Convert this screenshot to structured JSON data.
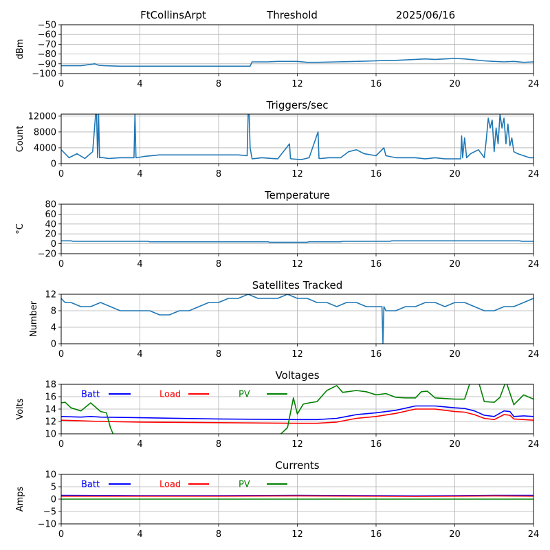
{
  "header": {
    "station": "FtCollinsArpt",
    "mode": "Threshold",
    "date": "2025/06/16"
  },
  "colors": {
    "line": "#1f77b4",
    "batt": "#0000ff",
    "load": "#ff0000",
    "pv": "#008000"
  },
  "chart_data": [
    {
      "type": "line",
      "title": "",
      "ylabel": "dBm",
      "ylim": [
        -100,
        -50
      ],
      "yticks": [
        -100,
        -90,
        -80,
        -70,
        -60,
        -50
      ],
      "ytick_labels": [
        "−100",
        "−90",
        "−80",
        "−70",
        "−60",
        "−50"
      ],
      "xlim": [
        0,
        24
      ],
      "xticks": [
        0,
        4,
        8,
        12,
        16,
        20,
        24
      ],
      "grid": true,
      "series": [
        {
          "name": "",
          "x": [
            0,
            1,
            1.7,
            1.9,
            2.2,
            3,
            4,
            6,
            8,
            9.6,
            9.7,
            10.5,
            11,
            12,
            12.5,
            13,
            14,
            15,
            16,
            16.5,
            17,
            18,
            18.5,
            19,
            19.5,
            20,
            20.5,
            21,
            21.5,
            22,
            22.5,
            23,
            23.5,
            24
          ],
          "y": [
            -92,
            -92,
            -90,
            -91.5,
            -92,
            -92.5,
            -92.5,
            -92.5,
            -92.5,
            -92.5,
            -88,
            -88,
            -87.5,
            -87.5,
            -88.5,
            -88.5,
            -88,
            -87.5,
            -87,
            -86.5,
            -86.5,
            -85.5,
            -85,
            -85.5,
            -85,
            -84.5,
            -85,
            -86,
            -87,
            -87.5,
            -88,
            -87.5,
            -88.5,
            -88
          ]
        }
      ]
    },
    {
      "type": "line",
      "title": "Triggers/sec",
      "ylabel": "Count",
      "ylim": [
        0,
        12500
      ],
      "yticks": [
        0,
        4000,
        8000,
        12000
      ],
      "ytick_labels": [
        "0",
        "4000",
        "8000",
        "12000"
      ],
      "xlim": [
        0,
        24
      ],
      "xticks": [
        0,
        4,
        8,
        12,
        16,
        20,
        24
      ],
      "grid": true,
      "series": [
        {
          "name": "",
          "x": [
            0,
            0.4,
            0.8,
            1.2,
            1.6,
            1.75,
            1.8,
            1.85,
            1.9,
            1.95,
            2.0,
            2.4,
            3.0,
            3.7,
            3.75,
            3.8,
            3.85,
            4.2,
            5,
            6,
            7,
            8,
            9,
            9.45,
            9.5,
            9.55,
            9.6,
            9.7,
            10.2,
            11,
            11.6,
            11.65,
            11.7,
            12.2,
            12.6,
            13.05,
            13.1,
            13.2,
            13.6,
            14.2,
            14.6,
            15,
            15.4,
            16,
            16.4,
            16.5,
            17,
            18,
            18.5,
            19,
            19.5,
            20,
            20.3,
            20.35,
            20.4,
            20.5,
            20.6,
            20.8,
            21.2,
            21.5,
            21.6,
            21.7,
            21.8,
            21.9,
            22.0,
            22.1,
            22.2,
            22.3,
            22.4,
            22.5,
            22.6,
            22.7,
            22.8,
            22.9,
            23.0,
            23.2,
            23.5,
            23.8,
            24
          ],
          "y": [
            3500,
            1500,
            2500,
            1300,
            3000,
            12500,
            12500,
            1500,
            12500,
            1500,
            1600,
            1300,
            1500,
            1500,
            12500,
            1500,
            1500,
            1800,
            2200,
            2200,
            2200,
            2200,
            2200,
            2000,
            12500,
            12500,
            4000,
            1200,
            1500,
            1200,
            5000,
            1300,
            1200,
            1000,
            1500,
            8000,
            1300,
            1300,
            1500,
            1500,
            3000,
            3500,
            2500,
            2000,
            4000,
            2000,
            1500,
            1500,
            1200,
            1500,
            1200,
            1200,
            1200,
            7000,
            1500,
            6500,
            1500,
            2500,
            3500,
            1500,
            6000,
            11500,
            9000,
            11000,
            3000,
            9000,
            5000,
            12500,
            9000,
            11500,
            5000,
            10000,
            4500,
            6500,
            3000,
            2500,
            2000,
            1500,
            1500
          ]
        }
      ]
    },
    {
      "type": "line",
      "title": "Temperature",
      "ylabel": "°C",
      "ylim": [
        -20,
        80
      ],
      "yticks": [
        -20,
        0,
        20,
        40,
        60,
        80
      ],
      "ytick_labels": [
        "−20",
        "0",
        "20",
        "40",
        "60",
        "80"
      ],
      "xlim": [
        0,
        24
      ],
      "xticks": [
        0,
        4,
        8,
        12,
        16,
        20,
        24
      ],
      "grid": true,
      "series": [
        {
          "name": "",
          "x": [
            0,
            0.5,
            0.6,
            4.4,
            4.5,
            10.5,
            10.6,
            12.5,
            12.6,
            14.2,
            14.3,
            16.7,
            16.8,
            23.3,
            23.4,
            24
          ],
          "y": [
            6,
            6,
            5,
            5,
            4,
            4,
            3,
            3,
            4,
            4,
            5,
            5,
            6,
            6,
            5,
            5
          ]
        }
      ]
    },
    {
      "type": "line",
      "title": "Satellites Tracked",
      "ylabel": "Number",
      "ylim": [
        0,
        12
      ],
      "yticks": [
        0,
        4,
        8,
        12
      ],
      "ytick_labels": [
        "0",
        "4",
        "8",
        "12"
      ],
      "xlim": [
        0,
        24
      ],
      "xticks": [
        0,
        4,
        8,
        12,
        16,
        20,
        24
      ],
      "grid": true,
      "series": [
        {
          "name": "",
          "x": [
            0,
            0.2,
            0.5,
            1,
            1.5,
            2,
            2.5,
            3,
            3.5,
            4,
            4.5,
            5,
            5.5,
            6,
            6.5,
            7,
            7.5,
            8,
            8.5,
            9,
            9.5,
            10,
            10.5,
            11,
            11.5,
            12,
            12.5,
            13,
            13.5,
            14,
            14.5,
            15,
            15.5,
            16,
            16.3,
            16.35,
            16.4,
            16.5,
            17,
            17.5,
            18,
            18.5,
            19,
            19.5,
            20,
            20.5,
            21,
            21.5,
            22,
            22.5,
            23,
            23.5,
            24
          ],
          "y": [
            11,
            10,
            10,
            9,
            9,
            10,
            9,
            8,
            8,
            8,
            8,
            7,
            7,
            8,
            8,
            9,
            10,
            10,
            11,
            11,
            12,
            11,
            11,
            11,
            12,
            11,
            11,
            10,
            10,
            9,
            10,
            10,
            9,
            9,
            9,
            0,
            9,
            8,
            8,
            9,
            9,
            10,
            10,
            9,
            10,
            10,
            9,
            8,
            8,
            9,
            9,
            10,
            11
          ]
        }
      ]
    },
    {
      "type": "line",
      "title": "Voltages",
      "ylabel": "Volts",
      "ylim": [
        10,
        18
      ],
      "yticks": [
        10,
        12,
        14,
        16,
        18
      ],
      "ytick_labels": [
        "10",
        "12",
        "14",
        "16",
        "18"
      ],
      "xlim": [
        0,
        24
      ],
      "xticks": [
        0,
        4,
        8,
        12,
        16,
        20,
        24
      ],
      "grid": true,
      "series": [
        {
          "name": "Batt",
          "x": [
            0,
            1,
            1.5,
            2,
            4,
            8,
            12,
            13,
            14,
            15,
            16,
            17,
            18,
            19,
            20,
            20.5,
            21,
            21.5,
            22,
            22.5,
            22.8,
            23,
            23.5,
            24
          ],
          "y": [
            12.8,
            12.7,
            12.8,
            12.7,
            12.6,
            12.4,
            12.3,
            12.3,
            12.5,
            13.1,
            13.4,
            13.8,
            14.5,
            14.5,
            14.2,
            14.1,
            13.7,
            13.0,
            12.8,
            13.7,
            13.6,
            12.8,
            12.9,
            12.8
          ]
        },
        {
          "name": "Load",
          "x": [
            0,
            1,
            2,
            4,
            8,
            12,
            13,
            14,
            15,
            16,
            17,
            18,
            19,
            20,
            20.5,
            21,
            21.5,
            22,
            22.5,
            22.8,
            23,
            23.5,
            24
          ],
          "y": [
            12.2,
            12.1,
            12.0,
            11.9,
            11.8,
            11.7,
            11.7,
            11.9,
            12.5,
            12.8,
            13.3,
            14.0,
            14.0,
            13.6,
            13.5,
            13.1,
            12.5,
            12.3,
            13.1,
            13.0,
            12.4,
            12.3,
            12.2
          ]
        },
        {
          "name": "PV",
          "x": [
            0,
            0.2,
            0.5,
            1,
            1.5,
            2,
            2.3,
            2.5,
            2.7,
            11,
            11.5,
            11.8,
            12,
            12.3,
            12.6,
            13,
            13.5,
            14,
            14.3,
            15,
            15.5,
            16,
            16.5,
            17,
            17.5,
            18,
            18.3,
            18.6,
            19,
            19.5,
            20,
            20.5,
            20.8,
            21.2,
            21.5,
            22,
            22.3,
            22.6,
            23,
            23.5,
            24
          ],
          "y": [
            15,
            15.1,
            14.2,
            13.7,
            15.0,
            13.6,
            13.4,
            11.0,
            9.5,
            9.5,
            11.0,
            15.8,
            13.2,
            14.8,
            15.0,
            15.2,
            17.0,
            17.8,
            16.7,
            17.0,
            16.8,
            16.3,
            16.5,
            15.9,
            15.8,
            15.8,
            16.8,
            16.9,
            15.8,
            15.7,
            15.6,
            15.6,
            18.5,
            18.5,
            15.2,
            15.1,
            15.9,
            18.5,
            14.7,
            16.3,
            15.6
          ]
        }
      ],
      "legend": "top-left"
    },
    {
      "type": "line",
      "title": "Currents",
      "ylabel": "Amps",
      "ylim": [
        -10,
        10
      ],
      "yticks": [
        -10,
        -5,
        0,
        5,
        10
      ],
      "ytick_labels": [
        "−10",
        "−5",
        "0",
        "5",
        "10"
      ],
      "xlim": [
        0,
        24
      ],
      "xticks": [
        0,
        4,
        8,
        12,
        16,
        20,
        24
      ],
      "grid": true,
      "series": [
        {
          "name": "Batt",
          "x": [
            0,
            4,
            8,
            12,
            16,
            18,
            20,
            22,
            24
          ],
          "y": [
            1.5,
            1.4,
            1.4,
            1.5,
            1.4,
            1.3,
            1.4,
            1.5,
            1.5
          ]
        },
        {
          "name": "Load",
          "x": [
            0,
            4,
            8,
            12,
            16,
            18,
            20,
            22,
            24
          ],
          "y": [
            1.2,
            1.2,
            1.2,
            1.3,
            1.2,
            1.1,
            1.2,
            1.3,
            1.2
          ]
        },
        {
          "name": "PV",
          "x": [
            0,
            24
          ],
          "y": [
            0,
            0
          ]
        }
      ],
      "legend": "top-left"
    }
  ]
}
